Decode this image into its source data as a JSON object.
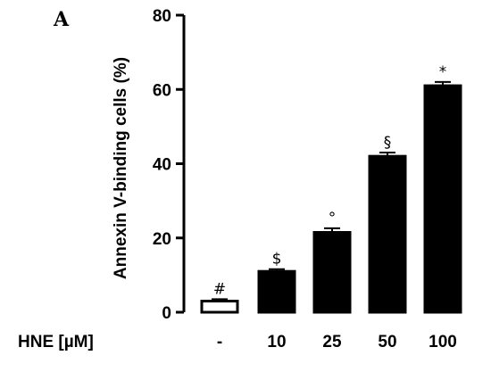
{
  "panel_label": "A",
  "chart_data": {
    "type": "bar",
    "xlabel": "HNE [µM]",
    "ylabel": "Annexin V-binding cells (%)",
    "categories": [
      "-",
      "10",
      "25",
      "50",
      "100"
    ],
    "values": [
      3,
      11,
      21.5,
      42,
      61
    ],
    "errors": [
      0.5,
      0.6,
      1.1,
      1.0,
      1.0
    ],
    "significance": [
      "#",
      "$",
      "°",
      "§",
      "*"
    ],
    "bar_fill": [
      "#ffffff",
      "#000000",
      "#000000",
      "#000000",
      "#000000"
    ],
    "bar_stroke": "#000000",
    "ylim": [
      0,
      80
    ],
    "yticks": [
      0,
      20,
      40,
      60,
      80
    ],
    "grid": false
  }
}
